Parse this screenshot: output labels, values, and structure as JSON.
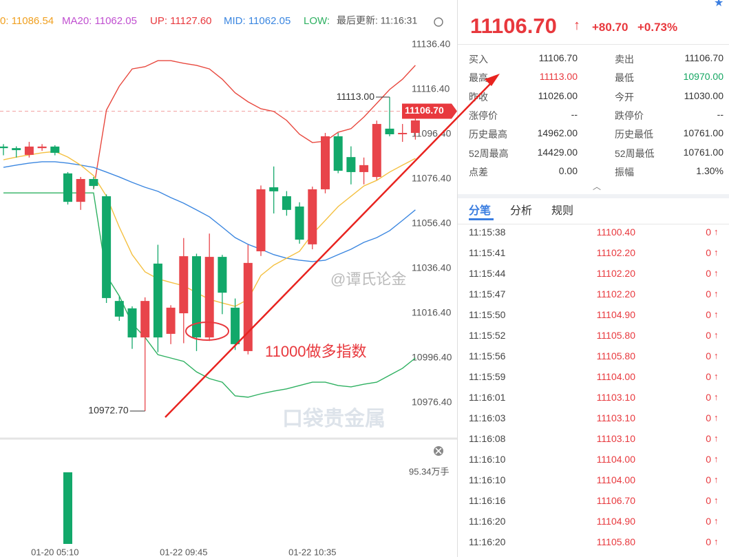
{
  "header": [
    {
      "text": "0: 11086.54",
      "color": "#f0a020"
    },
    {
      "text": "MA20: 11062.05",
      "color": "#c04fd0"
    },
    {
      "text": "UP: 11127.60",
      "color": "#e8383d"
    },
    {
      "text": "MID: 11062.05",
      "color": "#3a86e0"
    },
    {
      "text": "LOW:",
      "color": "#2db060"
    },
    {
      "text": "最后更新: 11:16:31",
      "color": "#555555"
    }
  ],
  "chart": {
    "type": "candlestick",
    "ylim": [
      10960.4,
      11156.4
    ],
    "yticks": [
      {
        "value": 11136.4,
        "label": "11136.40"
      },
      {
        "value": 11116.4,
        "label": "11116.40"
      },
      {
        "value": 11096.4,
        "label": "11096.40"
      },
      {
        "value": 11076.4,
        "label": "11076.40"
      },
      {
        "value": 11056.4,
        "label": "11056.40"
      },
      {
        "value": 11036.4,
        "label": "11036.40"
      },
      {
        "value": 11016.4,
        "label": "11016.40"
      },
      {
        "value": 10996.4,
        "label": "10996.40"
      },
      {
        "value": 10976.4,
        "label": "10976.40"
      }
    ],
    "categories": [
      null,
      null,
      null,
      null,
      "01-20 05:10",
      null,
      null,
      null,
      null,
      null,
      null,
      null,
      null,
      null,
      "01-22 09:45",
      null,
      null,
      null,
      null,
      null,
      null,
      null,
      null,
      null,
      "01-22 10:35",
      null,
      null,
      null,
      null,
      null,
      null,
      null,
      null
    ],
    "up_color": "#e8444a",
    "down_color": "#12a86a",
    "candles": [
      [
        11090.9,
        11092,
        11087,
        11090.2
      ],
      [
        11090.2,
        11091,
        11086,
        11089.3
      ],
      [
        11087.2,
        11093,
        11086,
        11090.9
      ],
      [
        11090.2,
        11092,
        11089,
        11090.9
      ],
      [
        11090.9,
        11091.5,
        11087,
        11088.1
      ],
      [
        11078.9,
        11079.5,
        11065,
        11066.2
      ],
      [
        11066.2,
        11077.3,
        11062.6,
        11076.4
      ],
      [
        11076.4,
        11077.3,
        11072,
        11073.3
      ],
      [
        11068.7,
        11069.5,
        11021,
        11023.2
      ],
      [
        11021.9,
        11024,
        11013,
        11014.9
      ],
      [
        11018.6,
        11019.5,
        11000.5,
        11005.6
      ],
      [
        11005.6,
        11023.5,
        10972.7,
        11021.9
      ],
      [
        11038.6,
        11047,
        10999,
        11005.6
      ],
      [
        11007.2,
        11020,
        11002.6,
        11018.9
      ],
      [
        11016.4,
        11050,
        11003,
        11041.9
      ],
      [
        11041.9,
        11043,
        10999.5,
        11005.6
      ],
      [
        11005.6,
        11052,
        11004,
        11041.6
      ],
      [
        11041.6,
        11042.5,
        11016,
        11025.6
      ],
      [
        11018.9,
        11023,
        11000,
        11002.6
      ],
      [
        10999.5,
        11047,
        10998,
        11038.9
      ],
      [
        11044.1,
        11073.5,
        11042,
        11071.8
      ],
      [
        11072.7,
        11082,
        11061,
        11070.9
      ],
      [
        11068.7,
        11071,
        11060,
        11062.6
      ],
      [
        11064.1,
        11066,
        11047.5,
        11049.3
      ],
      [
        11047.2,
        11073,
        11045,
        11071.8
      ],
      [
        11071.8,
        11097,
        11070,
        11095.5
      ],
      [
        11095.5,
        11097,
        11079,
        11080.1
      ],
      [
        11086.2,
        11091,
        11074,
        11079.5
      ],
      [
        11079.5,
        11086,
        11074,
        11082.6
      ],
      [
        11077.3,
        11102.5,
        11076,
        11101.0
      ],
      [
        11098.9,
        11113.0,
        11095.5,
        11096.4
      ],
      [
        11096.4,
        11101,
        11093,
        11097.0
      ],
      [
        11097.0,
        11104,
        11094,
        11102.6
      ]
    ],
    "lines": [
      {
        "color": "#e8483e",
        "values": [
          null,
          null,
          null,
          null,
          null,
          null,
          null,
          11071.8,
          11107.2,
          11117.9,
          11125.6,
          11126.6,
          11129.3,
          11129.3,
          11128.1,
          11127.2,
          11125.6,
          11121.0,
          11114.9,
          11110.9,
          11107.8,
          11106.6,
          11102.6,
          11096.4,
          11092.7,
          11093.3,
          11097.3,
          11098.9,
          11104.1,
          11110.2,
          11116.4,
          11121.0,
          11127.2
        ]
      },
      {
        "color": "#3a86e0",
        "values": [
          11081.6,
          11082.6,
          11083.5,
          11084.1,
          11084.1,
          11083.5,
          11082.6,
          11081.6,
          11079.5,
          11077.3,
          11074.9,
          11072.7,
          11070.9,
          11068.1,
          11065.6,
          11062.6,
          11059.5,
          11054.9,
          11050.2,
          11047.2,
          11045.0,
          11042.6,
          11041.0,
          11040.1,
          11039.5,
          11040.1,
          11042.6,
          11045.0,
          11048.1,
          11050.2,
          11053.3,
          11057.9,
          11062.6
        ]
      },
      {
        "color": "#2db060",
        "values": [
          11070.2,
          11070.2,
          11070.2,
          11070.2,
          11070.2,
          11070.2,
          11070.2,
          11070.2,
          11033.3,
          11024.1,
          11011.8,
          11005.6,
          10997.9,
          10996.4,
          10994.9,
          10990.2,
          10987.2,
          10985.6,
          10979.5,
          10978.9,
          10980.4,
          10981.6,
          10982.6,
          10984.1,
          10985.6,
          10985.6,
          10984.1,
          10983.5,
          10984.7,
          10985.6,
          10988.7,
          10991.8,
          10996.4
        ]
      },
      {
        "color": "#f4c040",
        "values": [
          11085.0,
          11086.2,
          11087.2,
          11088.1,
          11088.7,
          11086.2,
          11082.6,
          11077.9,
          11068.7,
          11054.9,
          11042.6,
          11034.9,
          11031.8,
          11030.2,
          11028.7,
          11025.6,
          11022.6,
          11021.0,
          11019.5,
          11022.6,
          11033.3,
          11037.9,
          11041.0,
          11044.1,
          11051.8,
          11057.9,
          11064.1,
          11068.7,
          11073.3,
          11075.8,
          11079.5,
          11082.6,
          11085.6
        ]
      }
    ],
    "high_marker": {
      "value": 11113.0,
      "label": "11113.00"
    },
    "low_marker": {
      "value": 10972.7,
      "label": "10972.70"
    },
    "price_tag": {
      "value": 11106.7,
      "label": "11106.70"
    },
    "annotation": "11000做多指数",
    "watermark": "@谭氏论金",
    "watermark2": "口袋贵金属",
    "volume": {
      "tick": {
        "value": 95.34,
        "label": "95.34万手"
      },
      "values": [
        null,
        null,
        null,
        null,
        null,
        95.34,
        null,
        null,
        null,
        null,
        null,
        null,
        null,
        null,
        null,
        null,
        null,
        null,
        null,
        null,
        null,
        null,
        null,
        null,
        null,
        null,
        null,
        null,
        null,
        null,
        null,
        null,
        null
      ]
    }
  },
  "quote": {
    "price": "11106.70",
    "change": "+80.70",
    "percent": "+0.73%",
    "rows": [
      [
        "买入",
        "11106.70",
        "卖出",
        "11106.70"
      ],
      [
        "最高",
        "11113.00",
        "最低",
        "10970.00"
      ],
      [
        "昨收",
        "11026.00",
        "今开",
        "11030.00"
      ],
      [
        "涨停价",
        "--",
        "跌停价",
        "--"
      ],
      [
        "历史最高",
        "14962.00",
        "历史最低",
        "10761.00"
      ],
      [
        "52周最高",
        "14429.00",
        "52周最低",
        "10761.00"
      ],
      [
        "点差",
        "0.00",
        "振幅",
        "1.30%"
      ]
    ]
  },
  "tabs": [
    "分笔",
    "分析",
    "规则"
  ],
  "trades": [
    [
      "11:15:38",
      "11100.40",
      "0"
    ],
    [
      "11:15:41",
      "11102.20",
      "0"
    ],
    [
      "11:15:44",
      "11102.20",
      "0"
    ],
    [
      "11:15:47",
      "11102.20",
      "0"
    ],
    [
      "11:15:50",
      "11104.90",
      "0"
    ],
    [
      "11:15:52",
      "11105.80",
      "0"
    ],
    [
      "11:15:56",
      "11105.80",
      "0"
    ],
    [
      "11:15:59",
      "11104.00",
      "0"
    ],
    [
      "11:16:01",
      "11103.10",
      "0"
    ],
    [
      "11:16:03",
      "11103.10",
      "0"
    ],
    [
      "11:16:08",
      "11103.10",
      "0"
    ],
    [
      "11:16:10",
      "11104.00",
      "0"
    ],
    [
      "11:16:10",
      "11104.00",
      "0"
    ],
    [
      "11:16:16",
      "11106.70",
      "0"
    ],
    [
      "11:16:20",
      "11104.90",
      "0"
    ],
    [
      "11:16:20",
      "11105.80",
      "0"
    ]
  ]
}
